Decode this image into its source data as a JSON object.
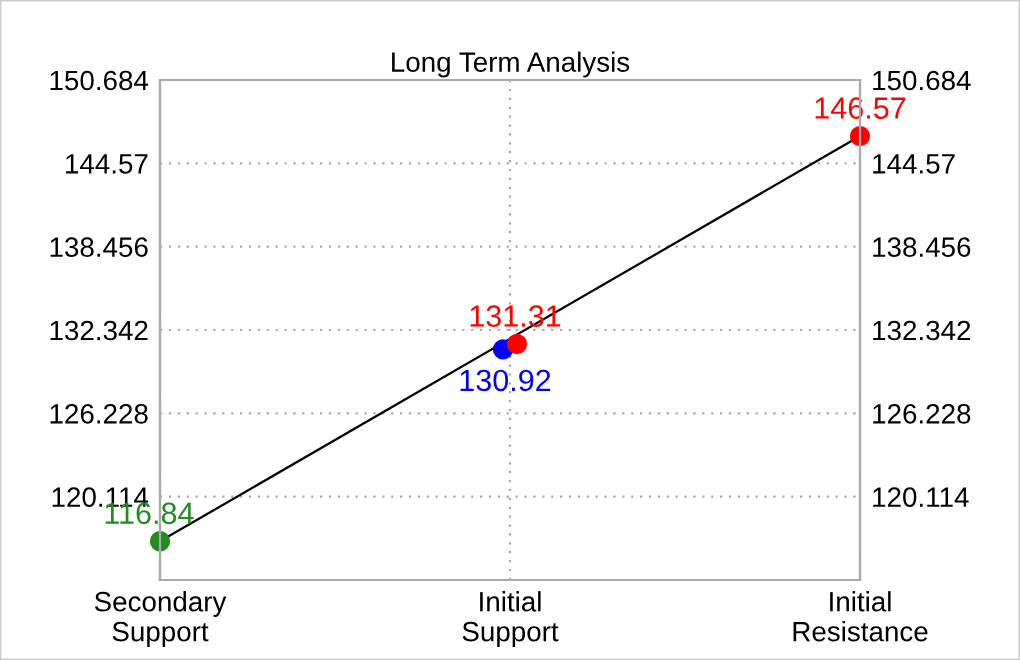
{
  "chart_data": {
    "type": "scatter",
    "title": "Long Term Analysis",
    "categories": [
      "Secondary\nSupport",
      "Initial\nSupport",
      "Initial\nResistance"
    ],
    "ylim": [
      114.0,
      150.684
    ],
    "yticks": [
      120.114,
      126.228,
      132.342,
      138.456,
      144.57,
      150.684
    ],
    "y2lim": [
      114.0,
      150.684
    ],
    "y2ticks": [
      120.114,
      126.228,
      132.342,
      138.456,
      144.57,
      150.684
    ],
    "grid": true,
    "series": [
      {
        "type": "line",
        "color": "#000000",
        "values": [
          116.84,
          null,
          146.57
        ],
        "marker": "none"
      },
      {
        "color": "#228b22",
        "values": [
          116.84,
          null,
          null
        ],
        "value_labels": [
          "116.84",
          null,
          null
        ],
        "marker": "circle"
      },
      {
        "color": "#0000ff",
        "values": [
          null,
          130.92,
          null
        ],
        "value_labels": [
          null,
          "130.92",
          null
        ],
        "marker": "circle"
      },
      {
        "color": "#ff0000",
        "values": [
          null,
          131.31,
          146.57
        ],
        "value_labels": [
          null,
          "131.31",
          "146.57"
        ],
        "marker": "circle"
      }
    ]
  }
}
